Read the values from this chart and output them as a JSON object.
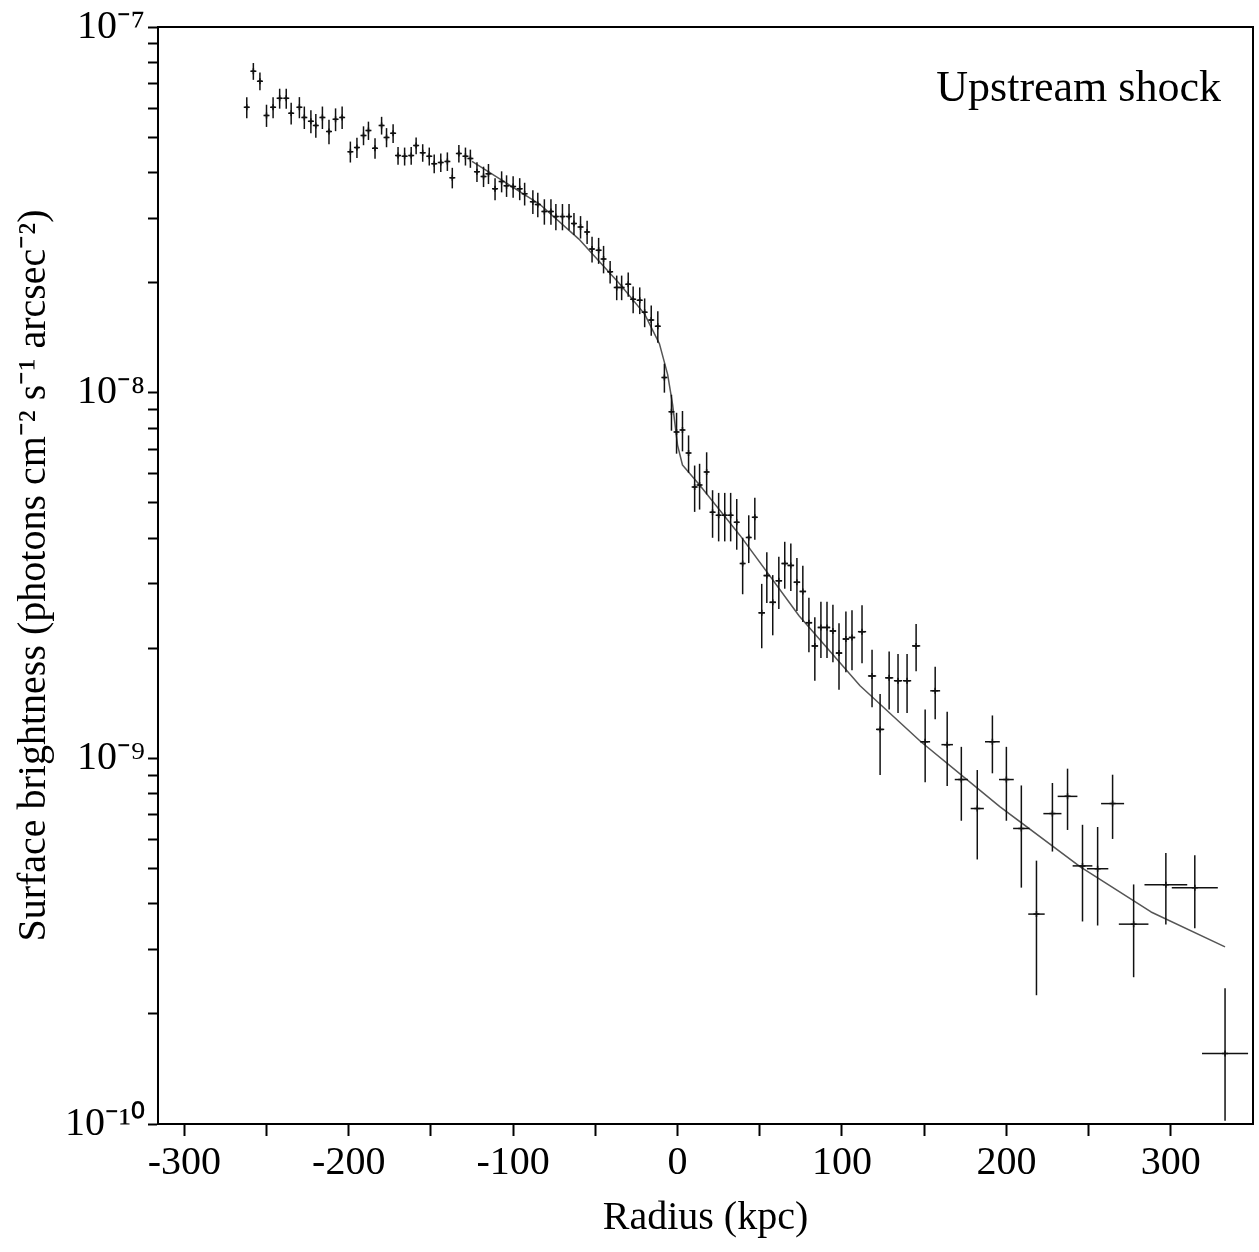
{
  "chart_data": {
    "type": "scatter",
    "xlabel": "Radius (kpc)",
    "ylabel": "Surface brightness (photons cm⁻² s⁻¹ arcsec⁻²)",
    "annotations": [
      "Upstream shock"
    ],
    "log": "y",
    "grid": false,
    "legend": false,
    "marker": "cross",
    "xlim": [
      -316,
      350
    ],
    "xticks": [
      -300,
      {
        "value": -250,
        "label": null
      },
      -200,
      {
        "value": -150,
        "label": null
      },
      -100,
      {
        "value": -50,
        "label": null
      },
      0,
      {
        "value": 50,
        "label": null
      },
      100,
      {
        "value": 150,
        "label": null
      },
      200,
      {
        "value": 250,
        "label": null
      },
      300
    ],
    "ylim": [
      1e-10,
      1e-07
    ],
    "yticks": [
      {
        "value": 1e-10,
        "label": "10⁻¹⁰"
      },
      {
        "value": 2e-10,
        "label": null
      },
      {
        "value": 3e-10,
        "label": null
      },
      {
        "value": 4e-10,
        "label": null
      },
      {
        "value": 5e-10,
        "label": null
      },
      {
        "value": 6e-10,
        "label": null
      },
      {
        "value": 7e-10,
        "label": null
      },
      {
        "value": 8e-10,
        "label": null
      },
      {
        "value": 9e-10,
        "label": null
      },
      {
        "value": 1e-09,
        "label": "10⁻⁹"
      },
      {
        "value": 2e-09,
        "label": null
      },
      {
        "value": 3e-09,
        "label": null
      },
      {
        "value": 4e-09,
        "label": null
      },
      {
        "value": 5e-09,
        "label": null
      },
      {
        "value": 6e-09,
        "label": null
      },
      {
        "value": 7e-09,
        "label": null
      },
      {
        "value": 8e-09,
        "label": null
      },
      {
        "value": 9e-09,
        "label": null
      },
      {
        "value": 1e-08,
        "label": "10⁻⁸"
      },
      {
        "value": 2e-08,
        "label": null
      },
      {
        "value": 3e-08,
        "label": null
      },
      {
        "value": 4e-08,
        "label": null
      },
      {
        "value": 5e-08,
        "label": null
      },
      {
        "value": 6e-08,
        "label": null
      },
      {
        "value": 7e-08,
        "label": null
      },
      {
        "value": 8e-08,
        "label": null
      },
      {
        "value": 9e-08,
        "label": null
      },
      {
        "value": 1e-07,
        "label": "10⁻⁷"
      }
    ],
    "series": [
      {
        "color": "#111111",
        "x": [
          -262,
          -258,
          -254,
          -250,
          -246,
          -242,
          -238,
          -235,
          -230,
          -227,
          -223,
          -220,
          -216,
          -212,
          -208,
          -204,
          -199,
          -195,
          -191,
          -188,
          -184,
          -180,
          -177,
          -173,
          -170,
          -166,
          -162,
          -159,
          -155,
          -151,
          -148,
          -144,
          -140,
          -137,
          -133,
          -129,
          -126,
          -122,
          -118,
          -115,
          -111,
          -107,
          -104,
          -100,
          -96,
          -93,
          -88,
          -85,
          -81,
          -77,
          -74,
          -70,
          -66,
          -63,
          -59,
          -55,
          -52,
          -48,
          -45,
          -41,
          -37,
          -34,
          -30,
          -27,
          -23,
          -20,
          -16,
          -12,
          -8,
          -3.7,
          -0.6,
          3,
          6.7,
          10.4,
          13.4,
          17.7,
          21.3,
          25,
          28.7,
          32.3,
          36,
          39.6,
          43.3,
          47,
          51.2,
          54.3,
          57.9,
          61.6,
          65.2,
          68.9,
          72.6,
          76.2,
          79.9,
          83.5,
          87.2,
          90.9,
          94.5,
          98.2,
          102.4,
          106.1,
          112.2,
          118.3,
          123.2,
          128.7,
          134.1,
          139.6,
          145.1,
          150.6,
          156.7,
          164,
          172.6,
          182.3,
          191.5,
          200,
          209.1,
          218.3,
          228,
          237.2,
          246.3,
          255.5,
          264.6,
          277.4,
          297,
          314.6,
          333
        ],
        "values": [
          6.03e-08,
          7.57e-08,
          7.11e-08,
          5.73e-08,
          6.03e-08,
          6.38e-08,
          6.38e-08,
          5.81e-08,
          6.03e-08,
          5.66e-08,
          5.52e-08,
          5.38e-08,
          5.66e-08,
          5.18e-08,
          5.59e-08,
          5.66e-08,
          4.56e-08,
          4.68e-08,
          5.05e-08,
          5.21e-08,
          4.66e-08,
          5.38e-08,
          4.99e-08,
          5.12e-08,
          4.45e-08,
          4.43e-08,
          4.45e-08,
          4.74e-08,
          4.53e-08,
          4.43e-08,
          4.23e-08,
          4.26e-08,
          4.29e-08,
          3.87e-08,
          4.51e-08,
          4.43e-08,
          4.37e-08,
          4.02e-08,
          3.9e-08,
          3.97e-08,
          3.61e-08,
          3.78e-08,
          3.68e-08,
          3.66e-08,
          3.61e-08,
          3.5e-08,
          3.33e-08,
          3.27e-08,
          3.13e-08,
          3.13e-08,
          3.03e-08,
          3.03e-08,
          3.03e-08,
          2.9e-08,
          2.84e-08,
          2.75e-08,
          2.47e-08,
          2.45e-08,
          2.32e-08,
          2.14e-08,
          1.94e-08,
          1.94e-08,
          1.98e-08,
          1.8e-08,
          1.79e-08,
          1.66e-08,
          1.58e-08,
          1.52e-08,
          1.1e-08,
          8.87e-09,
          7.81e-09,
          7.91e-09,
          6.84e-09,
          5.52e-09,
          5.59e-09,
          6.07e-09,
          4.71e-09,
          4.62e-09,
          4.62e-09,
          4.62e-09,
          4.42e-09,
          3.41e-09,
          4.02e-09,
          4.56e-09,
          2.5e-09,
          3.16e-09,
          2.67e-09,
          3.06e-09,
          3.41e-09,
          3.37e-09,
          3.03e-09,
          2.86e-09,
          2.35e-09,
          2.03e-09,
          2.28e-09,
          2.28e-09,
          2.23e-09,
          1.94e-09,
          2.12e-09,
          2.14e-09,
          2.22e-09,
          1.68e-09,
          1.2e-09,
          1.66e-09,
          1.63e-09,
          1.63e-09,
          2.03e-09,
          1.11e-09,
          1.53e-09,
          1.09e-09,
          8.75e-10,
          7.29e-10,
          1.11e-09,
          8.75e-10,
          6.43e-10,
          3.75e-10,
          7.06e-10,
          7.87e-10,
          5.08e-10,
          4.99e-10,
          7.52e-10,
          3.52e-10,
          4.51e-10,
          4.43e-10,
          1.56e-10
        ],
        "errors": [
          4e-09,
          4e-09,
          4e-09,
          4e-09,
          4e-09,
          4e-09,
          4e-09,
          4e-09,
          4e-09,
          4e-09,
          4e-09,
          4e-09,
          4e-09,
          4e-09,
          4e-09,
          4e-09,
          3e-09,
          3e-09,
          3e-09,
          3e-09,
          3e-09,
          3e-09,
          3e-09,
          3e-09,
          2.5e-09,
          2.5e-09,
          2.5e-09,
          2.5e-09,
          2.5e-09,
          2.5e-09,
          2.5e-09,
          2.5e-09,
          2.5e-09,
          2.5e-09,
          2.5e-09,
          2.5e-09,
          2.5e-09,
          2.5e-09,
          2.5e-09,
          2.5e-09,
          2.5e-09,
          2.5e-09,
          2.5e-09,
          2.5e-09,
          2.5e-09,
          2.5e-09,
          2.5e-09,
          2.5e-09,
          2.5e-09,
          2.5e-09,
          2.5e-09,
          2.5e-09,
          2.5e-09,
          2e-09,
          2e-09,
          2e-09,
          2e-09,
          2e-09,
          2e-09,
          1.5e-09,
          1.5e-09,
          1.5e-09,
          1.5e-09,
          1.5e-09,
          1.5e-09,
          1.5e-09,
          1.5e-09,
          1.5e-09,
          1e-09,
          1e-09,
          1e-09,
          1e-09,
          8e-10,
          8e-10,
          8e-10,
          8e-10,
          7e-10,
          7e-10,
          7e-10,
          7e-10,
          7e-10,
          6e-10,
          6e-10,
          6e-10,
          5e-10,
          5e-10,
          5e-10,
          5e-10,
          5e-10,
          5e-10,
          5e-10,
          5e-10,
          4e-10,
          4e-10,
          4e-10,
          4e-10,
          4e-10,
          4e-10,
          4e-10,
          4e-10,
          4e-10,
          3e-10,
          3e-10,
          3e-10,
          3e-10,
          3e-10,
          3e-10,
          2.5e-10,
          2.5e-10,
          2.5e-10,
          2e-10,
          2e-10,
          2e-10,
          2e-10,
          2e-10,
          1.5e-10,
          1.5e-10,
          1.5e-10,
          1.5e-10,
          1.5e-10,
          1.5e-10,
          1e-10,
          1e-10,
          1e-10,
          [
            1.02e-10,
            2.35e-10
          ]
        ],
        "xerrors": [
          1.2,
          1.2,
          1.2,
          1.2,
          1.2,
          1.2,
          1.2,
          1.2,
          1.2,
          1.2,
          1.2,
          1.2,
          1.2,
          1.2,
          1.2,
          1.2,
          1.2,
          1.2,
          1.2,
          1.2,
          1.2,
          1.2,
          1.2,
          1.2,
          1.2,
          1.2,
          1.2,
          1.2,
          1.2,
          1.2,
          1.2,
          1.2,
          1.2,
          1.2,
          1.2,
          1.2,
          1.2,
          1.2,
          1.2,
          1.2,
          1.2,
          1.2,
          1.2,
          1.2,
          1.2,
          1.2,
          1.2,
          1.2,
          1.2,
          1.2,
          1.2,
          1.2,
          1.2,
          1.2,
          1.2,
          1.2,
          1.2,
          1.2,
          1.2,
          1.2,
          1.2,
          1.2,
          1.2,
          1.2,
          1.2,
          1.2,
          1.2,
          1.2,
          1.2,
          1.2,
          1.2,
          1.2,
          1.2,
          1.2,
          1.2,
          1.2,
          1.2,
          1.2,
          1.2,
          1.2,
          1.2,
          1.2,
          1.2,
          1.2,
          2,
          2,
          2,
          2,
          2,
          2,
          2,
          2,
          2,
          2,
          2,
          2,
          2,
          2,
          2,
          2,
          2.5,
          2.5,
          2.5,
          2.5,
          2.5,
          2.5,
          2.5,
          3,
          3,
          3.5,
          4,
          4,
          4.5,
          4.5,
          5,
          5,
          5.5,
          6,
          6,
          6.5,
          7,
          9,
          13,
          14,
          14
        ]
      },
      {
        "type": "line",
        "marker": "none",
        "color": "#555555",
        "x": [
          -125,
          -84,
          -60,
          -35,
          -20,
          -11,
          -6,
          -3,
          0,
          3,
          13.4,
          38,
          74,
          111,
          148,
          196,
          245,
          288,
          333
        ],
        "values": [
          4.29e-08,
          3.28e-08,
          2.63e-08,
          1.98e-08,
          1.64e-08,
          1.36e-08,
          1.12e-08,
          9.27e-09,
          7.19e-09,
          6.34e-09,
          5.59e-09,
          4.07e-09,
          2.45e-09,
          1.58e-09,
          1.11e-09,
          7.38e-10,
          5.05e-10,
          3.8e-10,
          3.05e-10
        ]
      }
    ]
  }
}
